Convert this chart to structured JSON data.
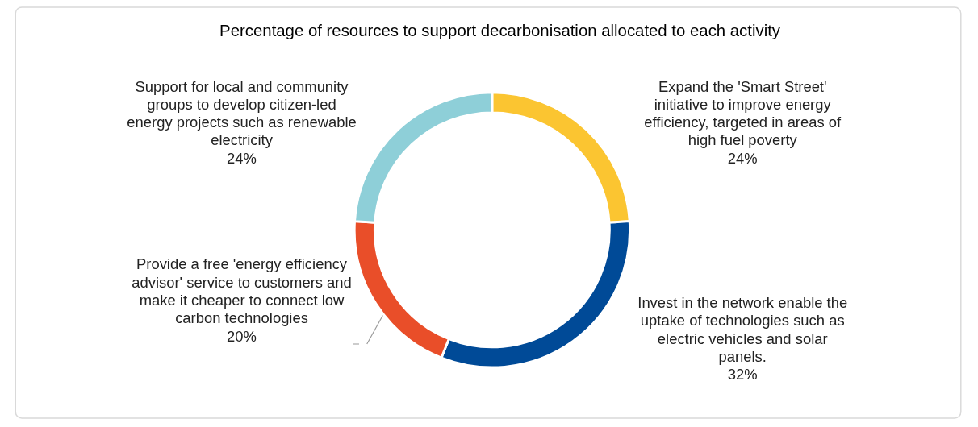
{
  "chart_data": {
    "type": "donut",
    "title": "Percentage of resources to support decarbonisation allocated to each activity",
    "categories": [
      "Expand the 'Smart Street' initiative to improve energy efficiency, targeted in areas of high fuel poverty",
      "Invest in the network enable the uptake of technologies such as electric vehicles and solar panels.",
      "Provide a free 'energy efficiency advisor' service to customers and make it cheaper to connect low carbon technologies",
      "Support for local and community groups to develop citizen-led energy projects such as renewable electricity"
    ],
    "values": [
      24,
      32,
      20,
      24
    ],
    "value_labels": [
      "24%",
      "32%",
      "20%",
      "24%"
    ],
    "colors": [
      "#fbc531",
      "#004a97",
      "#e94e29",
      "#8ecfd8"
    ]
  }
}
